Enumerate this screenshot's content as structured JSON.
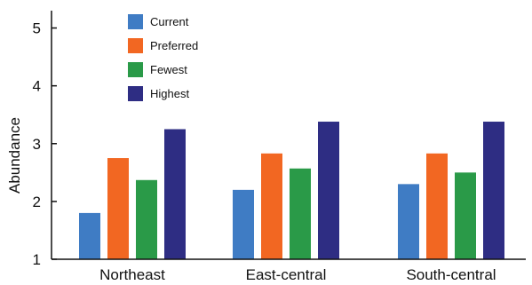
{
  "chart_data": {
    "type": "bar",
    "title": "",
    "xlabel": "",
    "ylabel": "Abundance",
    "ylim": [
      1,
      5.3
    ],
    "yticks": [
      1,
      2,
      3,
      4,
      5
    ],
    "grid": false,
    "legend": "top-left",
    "categories": [
      "Northeast",
      "East-central",
      "South-central"
    ],
    "series": [
      {
        "name": "Current",
        "color": "#3f7cc4",
        "values": [
          1.8,
          2.2,
          2.3
        ]
      },
      {
        "name": "Preferred",
        "color": "#f26722",
        "values": [
          2.75,
          2.83,
          2.83
        ]
      },
      {
        "name": "Fewest",
        "color": "#2a9a48",
        "values": [
          2.37,
          2.57,
          2.5
        ]
      },
      {
        "name": "Highest",
        "color": "#2e2d83",
        "values": [
          3.25,
          3.38,
          3.38
        ]
      }
    ]
  }
}
